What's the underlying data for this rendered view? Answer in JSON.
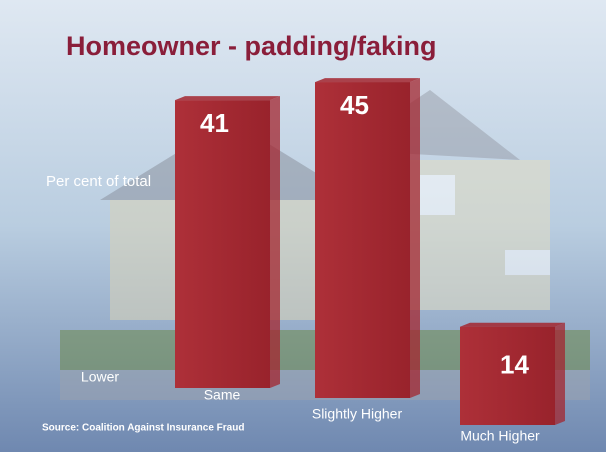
{
  "chart_data": {
    "type": "bar",
    "title": "Homeowner - padding/faking",
    "y_label": "Per cent of total",
    "source": "Source: Coalition Against Insurance Fraud",
    "categories": [
      "Lower",
      "Same",
      "Slightly Higher",
      "Much Higher"
    ],
    "values": [
      null,
      41,
      45,
      14
    ],
    "color": "#a3262f",
    "ylim": [
      0,
      50
    ]
  }
}
